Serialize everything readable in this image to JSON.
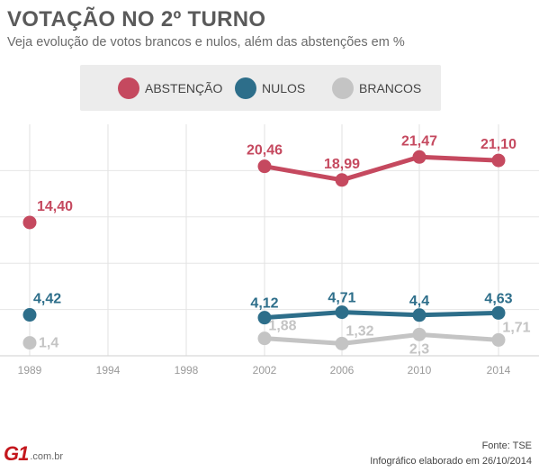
{
  "header": {
    "title": "VOTAÇÃO NO 2º TURNO",
    "subtitle": "Veja evolução de votos brancos e nulos, além das abstenções em %"
  },
  "legend": [
    {
      "label": "ABSTENÇÃO",
      "color": "#c5495f"
    },
    {
      "label": "NULOS",
      "color": "#2d6e8a"
    },
    {
      "label": "BRANCOS",
      "color": "#c4c4c4"
    }
  ],
  "chart_data": {
    "type": "line",
    "categories": [
      "1989",
      "1994",
      "1998",
      "2002",
      "2006",
      "2010",
      "2014"
    ],
    "ylim": [
      0,
      25
    ],
    "grid": true,
    "legend_position": "top",
    "series": [
      {
        "name": "ABSTENÇÃO",
        "color": "#c5495f",
        "values": [
          14.4,
          null,
          null,
          20.46,
          18.99,
          21.47,
          21.1
        ],
        "labels": [
          "14,40",
          null,
          null,
          "20,46",
          "18,99",
          "21,47",
          "21,10"
        ]
      },
      {
        "name": "NULOS",
        "color": "#2d6e8a",
        "values": [
          4.42,
          null,
          null,
          4.12,
          4.71,
          4.4,
          4.63
        ],
        "labels": [
          "4,42",
          null,
          null,
          "4,12",
          "4,71",
          "4,4",
          "4,63"
        ]
      },
      {
        "name": "BRANCOS",
        "color": "#c4c4c4",
        "values": [
          1.4,
          null,
          null,
          1.88,
          1.32,
          2.3,
          1.71
        ],
        "labels": [
          "1,4",
          null,
          null,
          "1,88",
          "1,32",
          "2,3",
          "1,71"
        ]
      }
    ]
  },
  "footer": {
    "source": "Fonte: TSE",
    "note": "Infográfico elaborado em 26/10/2014",
    "logo_mark": "G1",
    "logo_text": ".com.br"
  }
}
